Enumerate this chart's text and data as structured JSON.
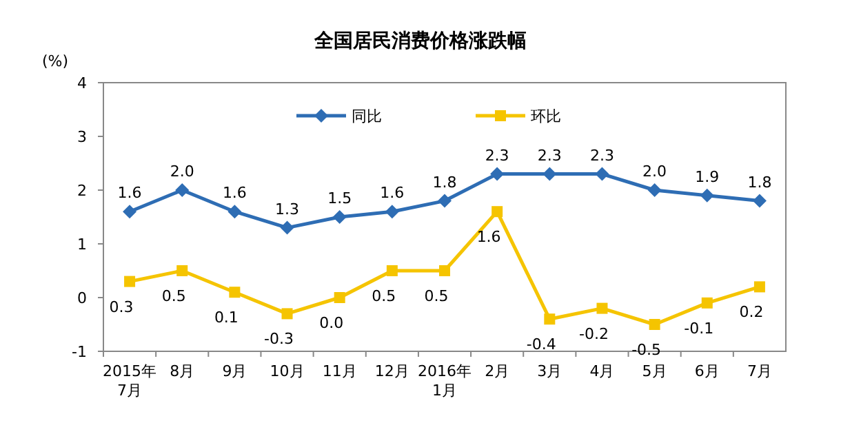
{
  "chart_data": {
    "type": "line",
    "title": "全国居民消费价格涨跌幅",
    "ylabel": "(%)",
    "categories": [
      "2015年\n7月",
      "8月",
      "9月",
      "10月",
      "11月",
      "12月",
      "2016年\n1月",
      "2月",
      "3月",
      "4月",
      "5月",
      "6月",
      "7月"
    ],
    "series": [
      {
        "name": "同比",
        "color": "#2e6db4",
        "marker": "diamond",
        "values": [
          1.6,
          2.0,
          1.6,
          1.3,
          1.5,
          1.6,
          1.8,
          2.3,
          2.3,
          2.3,
          2.0,
          1.9,
          1.8
        ],
        "value_labels": [
          "1.6",
          "2.0",
          "1.6",
          "1.3",
          "1.5",
          "1.6",
          "1.8",
          "2.3",
          "2.3",
          "2.3",
          "2.0",
          "1.9",
          "1.8"
        ]
      },
      {
        "name": "环比",
        "color": "#f5c400",
        "marker": "square",
        "values": [
          0.3,
          0.5,
          0.1,
          -0.3,
          0.0,
          0.5,
          0.5,
          1.6,
          -0.4,
          -0.2,
          -0.5,
          -0.1,
          0.2
        ],
        "value_labels": [
          "0.3",
          "0.5",
          "0.1",
          "-0.3",
          "0.0",
          "0.5",
          "0.5",
          "1.6",
          "-0.4",
          "-0.2",
          "-0.5",
          "-0.1",
          "0.2"
        ]
      }
    ],
    "ylim": [
      -1,
      4
    ],
    "yticks": [
      -1,
      0,
      1,
      2,
      3,
      4
    ],
    "legend": "top",
    "grid": false,
    "line_style": "solid"
  }
}
